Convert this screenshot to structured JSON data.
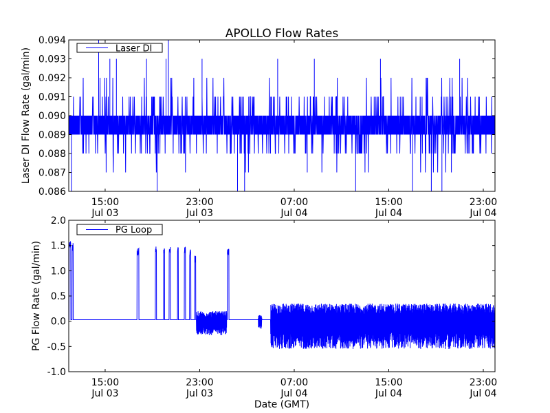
{
  "chart_data": [
    {
      "type": "line",
      "title": "APOLLO Flow Rates",
      "xlabel": "",
      "ylabel": "Laser DI Flow Rate (gal/min)",
      "x_units": "hours since Jul 03 00:00 GMT",
      "xlim": [
        11.92,
        47.99
      ],
      "ylim": [
        0.086,
        0.094
      ],
      "yticks": [
        "0.086",
        "0.087",
        "0.088",
        "0.089",
        "0.090",
        "0.091",
        "0.092",
        "0.093",
        "0.094"
      ],
      "xticks": [
        {
          "value": 15,
          "time": "15:00",
          "date": "Jul 03"
        },
        {
          "value": 23,
          "time": "23:00",
          "date": "Jul 03"
        },
        {
          "value": 31,
          "time": "07:00",
          "date": "Jul 04"
        },
        {
          "value": 39,
          "time": "15:00",
          "date": "Jul 04"
        },
        {
          "value": 47,
          "time": "23:00",
          "date": "Jul 04"
        }
      ],
      "legend": {
        "label": "Laser DI",
        "placement": "top-left"
      },
      "series": [
        {
          "name": "Laser DI",
          "color": "#0000ff",
          "baseline_band": [
            0.089,
            0.09
          ],
          "frequent_excursions": [
            0.088,
            0.091
          ],
          "spikes": [
            {
              "x": 12.15,
              "y": 0.086
            },
            {
              "x": 14.45,
              "y": 0.094
            },
            {
              "x": 15.4,
              "y": 0.093
            },
            {
              "x": 15.95,
              "y": 0.093
            },
            {
              "x": 18.5,
              "y": 0.093
            },
            {
              "x": 19.4,
              "y": 0.086
            },
            {
              "x": 20.15,
              "y": 0.093
            },
            {
              "x": 20.35,
              "y": 0.094
            },
            {
              "x": 23.2,
              "y": 0.093
            },
            {
              "x": 26.2,
              "y": 0.086
            },
            {
              "x": 26.8,
              "y": 0.086
            },
            {
              "x": 29.6,
              "y": 0.093
            },
            {
              "x": 32.7,
              "y": 0.093
            },
            {
              "x": 36.2,
              "y": 0.086
            },
            {
              "x": 38.3,
              "y": 0.093
            },
            {
              "x": 41.0,
              "y": 0.086
            },
            {
              "x": 42.6,
              "y": 0.086
            },
            {
              "x": 43.5,
              "y": 0.086
            },
            {
              "x": 45.0,
              "y": 0.093
            },
            {
              "x": 32.1,
              "y": 0.087
            },
            {
              "x": 44.3,
              "y": 0.087
            }
          ]
        }
      ]
    },
    {
      "type": "line",
      "xlabel": "Date (GMT)",
      "ylabel": "PG Flow Rate (gal/min)",
      "x_units": "hours since Jul 03 00:00 GMT",
      "xlim": [
        11.92,
        47.99
      ],
      "ylim": [
        -1.0,
        2.0
      ],
      "yticks": [
        "-1.0",
        "-0.5",
        "0.0",
        "0.5",
        "1.0",
        "1.5",
        "2.0"
      ],
      "xticks": [
        {
          "value": 15,
          "time": "15:00",
          "date": "Jul 03"
        },
        {
          "value": 23,
          "time": "23:00",
          "date": "Jul 03"
        },
        {
          "value": 31,
          "time": "07:00",
          "date": "Jul 04"
        },
        {
          "value": 39,
          "time": "15:00",
          "date": "Jul 04"
        },
        {
          "value": 47,
          "time": "23:00",
          "date": "Jul 04"
        }
      ],
      "legend": {
        "label": "PG Loop",
        "placement": "top-left"
      },
      "series": [
        {
          "name": "PG Loop",
          "color": "#0000ff",
          "baseline": 0.03,
          "pulses": [
            {
              "start": 11.95,
              "end": 12.1,
              "y": 1.6
            },
            {
              "start": 12.2,
              "end": 12.3,
              "y": 1.55
            },
            {
              "start": 17.7,
              "end": 17.85,
              "y": 1.45
            },
            {
              "start": 19.25,
              "end": 19.35,
              "y": 1.48
            },
            {
              "start": 19.95,
              "end": 20.03,
              "y": 1.45
            },
            {
              "start": 20.42,
              "end": 20.52,
              "y": 1.48
            },
            {
              "start": 21.12,
              "end": 21.2,
              "y": 1.48
            },
            {
              "start": 21.7,
              "end": 21.8,
              "y": 1.5
            },
            {
              "start": 22.15,
              "end": 22.25,
              "y": 1.45
            },
            {
              "start": 22.58,
              "end": 22.66,
              "y": 1.3
            },
            {
              "start": 23.1,
              "end": 23.2,
              "y": 1.45
            },
            {
              "start": 23.92,
              "end": 24.0,
              "y": 1.4
            },
            {
              "start": 25.35,
              "end": 25.48,
              "y": 1.45
            }
          ],
          "noise_segments": [
            {
              "start": 22.72,
              "end": 25.3,
              "low": -0.28,
              "high": 0.2
            },
            {
              "start": 27.95,
              "end": 28.25,
              "low": -0.15,
              "high": 0.12
            },
            {
              "start": 29.0,
              "end": 47.99,
              "low": -0.55,
              "high": 0.35
            }
          ]
        }
      ]
    }
  ]
}
